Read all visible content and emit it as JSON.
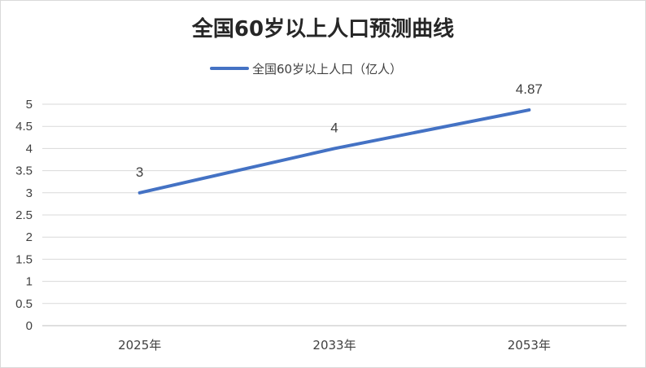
{
  "chart_data": {
    "type": "line",
    "title": "全国60岁以上人口预测曲线",
    "categories": [
      "2025年",
      "2033年",
      "2053年"
    ],
    "series": [
      {
        "name": "全国60岁以上人口（亿人）",
        "values": [
          3,
          4,
          4.87
        ],
        "data_labels": [
          "3",
          "4",
          "4.87"
        ],
        "color": "#4472C4"
      }
    ],
    "ylim": [
      0,
      5
    ],
    "y_ticks": [
      "0",
      "0.5",
      "1",
      "1.5",
      "2",
      "2.5",
      "3",
      "3.5",
      "4",
      "4.5",
      "5"
    ],
    "grid": true,
    "legend_position": "top"
  }
}
